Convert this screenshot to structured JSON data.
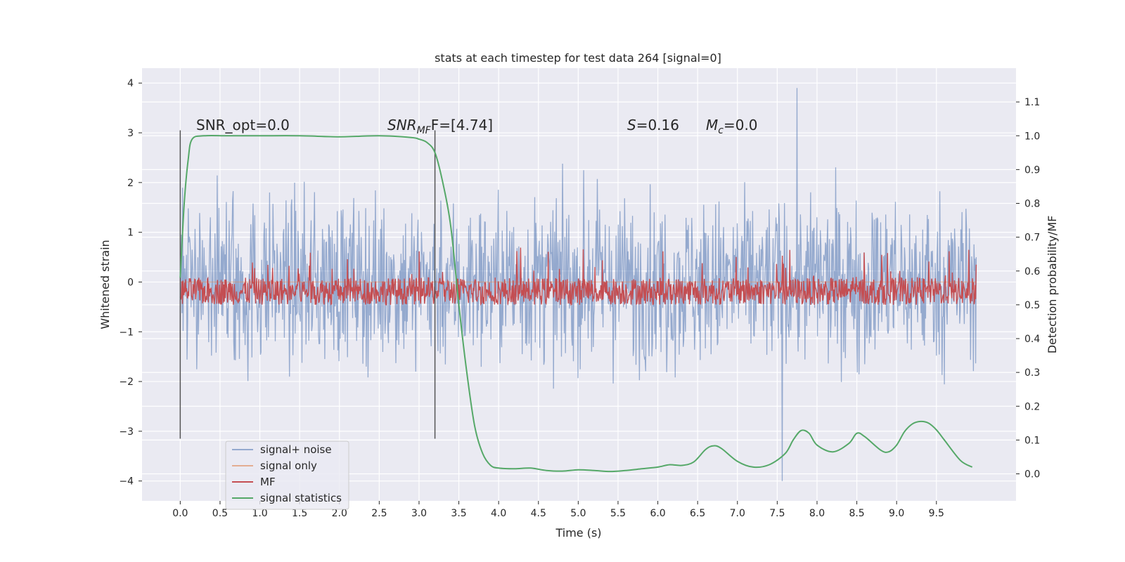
{
  "chart_data": {
    "type": "line",
    "title": "stats at each timestep for test data 264 [signal=0]",
    "xlabel": "Time (s)",
    "ylabel_left": "Whitened strain",
    "ylabel_right": "Detection probability/MF",
    "xlim": [
      -0.48,
      10.5
    ],
    "ylim_left": [
      -4.4,
      4.3
    ],
    "ylim_right": [
      -0.08,
      1.2
    ],
    "x_ticks": [
      "0.0",
      "0.5",
      "1.0",
      "1.5",
      "2.0",
      "2.5",
      "3.0",
      "3.5",
      "4.0",
      "4.5",
      "5.0",
      "5.5",
      "6.0",
      "6.5",
      "7.0",
      "7.5",
      "8.0",
      "8.5",
      "9.0",
      "9.5"
    ],
    "y_ticks_left": [
      "4",
      "3",
      "2",
      "1",
      "0",
      "−1",
      "−2",
      "−3",
      "−4"
    ],
    "y_ticks_right": [
      "1.1",
      "1.0",
      "0.9",
      "0.8",
      "0.7",
      "0.6",
      "0.5",
      "0.4",
      "0.3",
      "0.2",
      "0.1",
      "0.0"
    ],
    "grid": true,
    "legend_position": "lower-left",
    "annotations": {
      "snr_opt": "SNR_opt=0.0",
      "snr_mf_main": "SNR",
      "snr_mf_sub": "MF",
      "snr_mf_eq": "F=[4.74]",
      "s_main": "S",
      "s_eq": "=0.16",
      "mc_main": "M",
      "mc_sub": "c",
      "mc_eq": "=0.0"
    },
    "vlines": [
      0.0,
      3.2
    ],
    "series": [
      {
        "name": "signal+ noise",
        "color": "#4c72b0",
        "axis": "left",
        "x_range": [
          0.0,
          10.0
        ],
        "note_envelope": {
          "typical_amplitude": 1.2,
          "max": 3.9,
          "min": -4.0
        }
      },
      {
        "name": "signal only",
        "color": "#dd8452",
        "axis": "left",
        "values": [
          0
        ]
      },
      {
        "name": "MF",
        "color": "#c44e52",
        "axis": "right",
        "x_range": [
          0.0,
          10.0
        ],
        "note_envelope": {
          "low": 0.5,
          "high": 0.58,
          "peak": 0.67
        }
      },
      {
        "name": "signal statistics",
        "color": "#55a868",
        "axis": "right",
        "x": [
          0.0,
          0.05,
          0.1,
          0.15,
          0.3,
          0.6,
          1.0,
          1.5,
          2.0,
          2.5,
          2.9,
          3.0,
          3.1,
          3.2,
          3.3,
          3.4,
          3.5,
          3.6,
          3.7,
          3.8,
          3.9,
          4.0,
          4.2,
          4.4,
          4.6,
          4.8,
          5.0,
          5.2,
          5.4,
          5.6,
          5.8,
          6.0,
          6.15,
          6.3,
          6.45,
          6.6,
          6.7,
          6.8,
          7.0,
          7.2,
          7.4,
          7.6,
          7.7,
          7.8,
          7.9,
          8.0,
          8.2,
          8.4,
          8.5,
          8.6,
          8.8,
          8.9,
          9.0,
          9.1,
          9.2,
          9.3,
          9.4,
          9.5,
          9.6,
          9.8,
          9.95
        ],
        "values": [
          0.58,
          0.8,
          0.93,
          0.99,
          1.0,
          1.0,
          1.0,
          1.0,
          0.997,
          1.0,
          0.995,
          0.99,
          0.98,
          0.95,
          0.86,
          0.73,
          0.5,
          0.3,
          0.14,
          0.06,
          0.025,
          0.017,
          0.015,
          0.017,
          0.01,
          0.008,
          0.012,
          0.01,
          0.007,
          0.01,
          0.015,
          0.02,
          0.027,
          0.025,
          0.035,
          0.072,
          0.083,
          0.075,
          0.037,
          0.02,
          0.027,
          0.06,
          0.1,
          0.128,
          0.12,
          0.085,
          0.065,
          0.09,
          0.12,
          0.11,
          0.07,
          0.065,
          0.085,
          0.125,
          0.148,
          0.155,
          0.15,
          0.13,
          0.1,
          0.04,
          0.02
        ]
      }
    ]
  }
}
